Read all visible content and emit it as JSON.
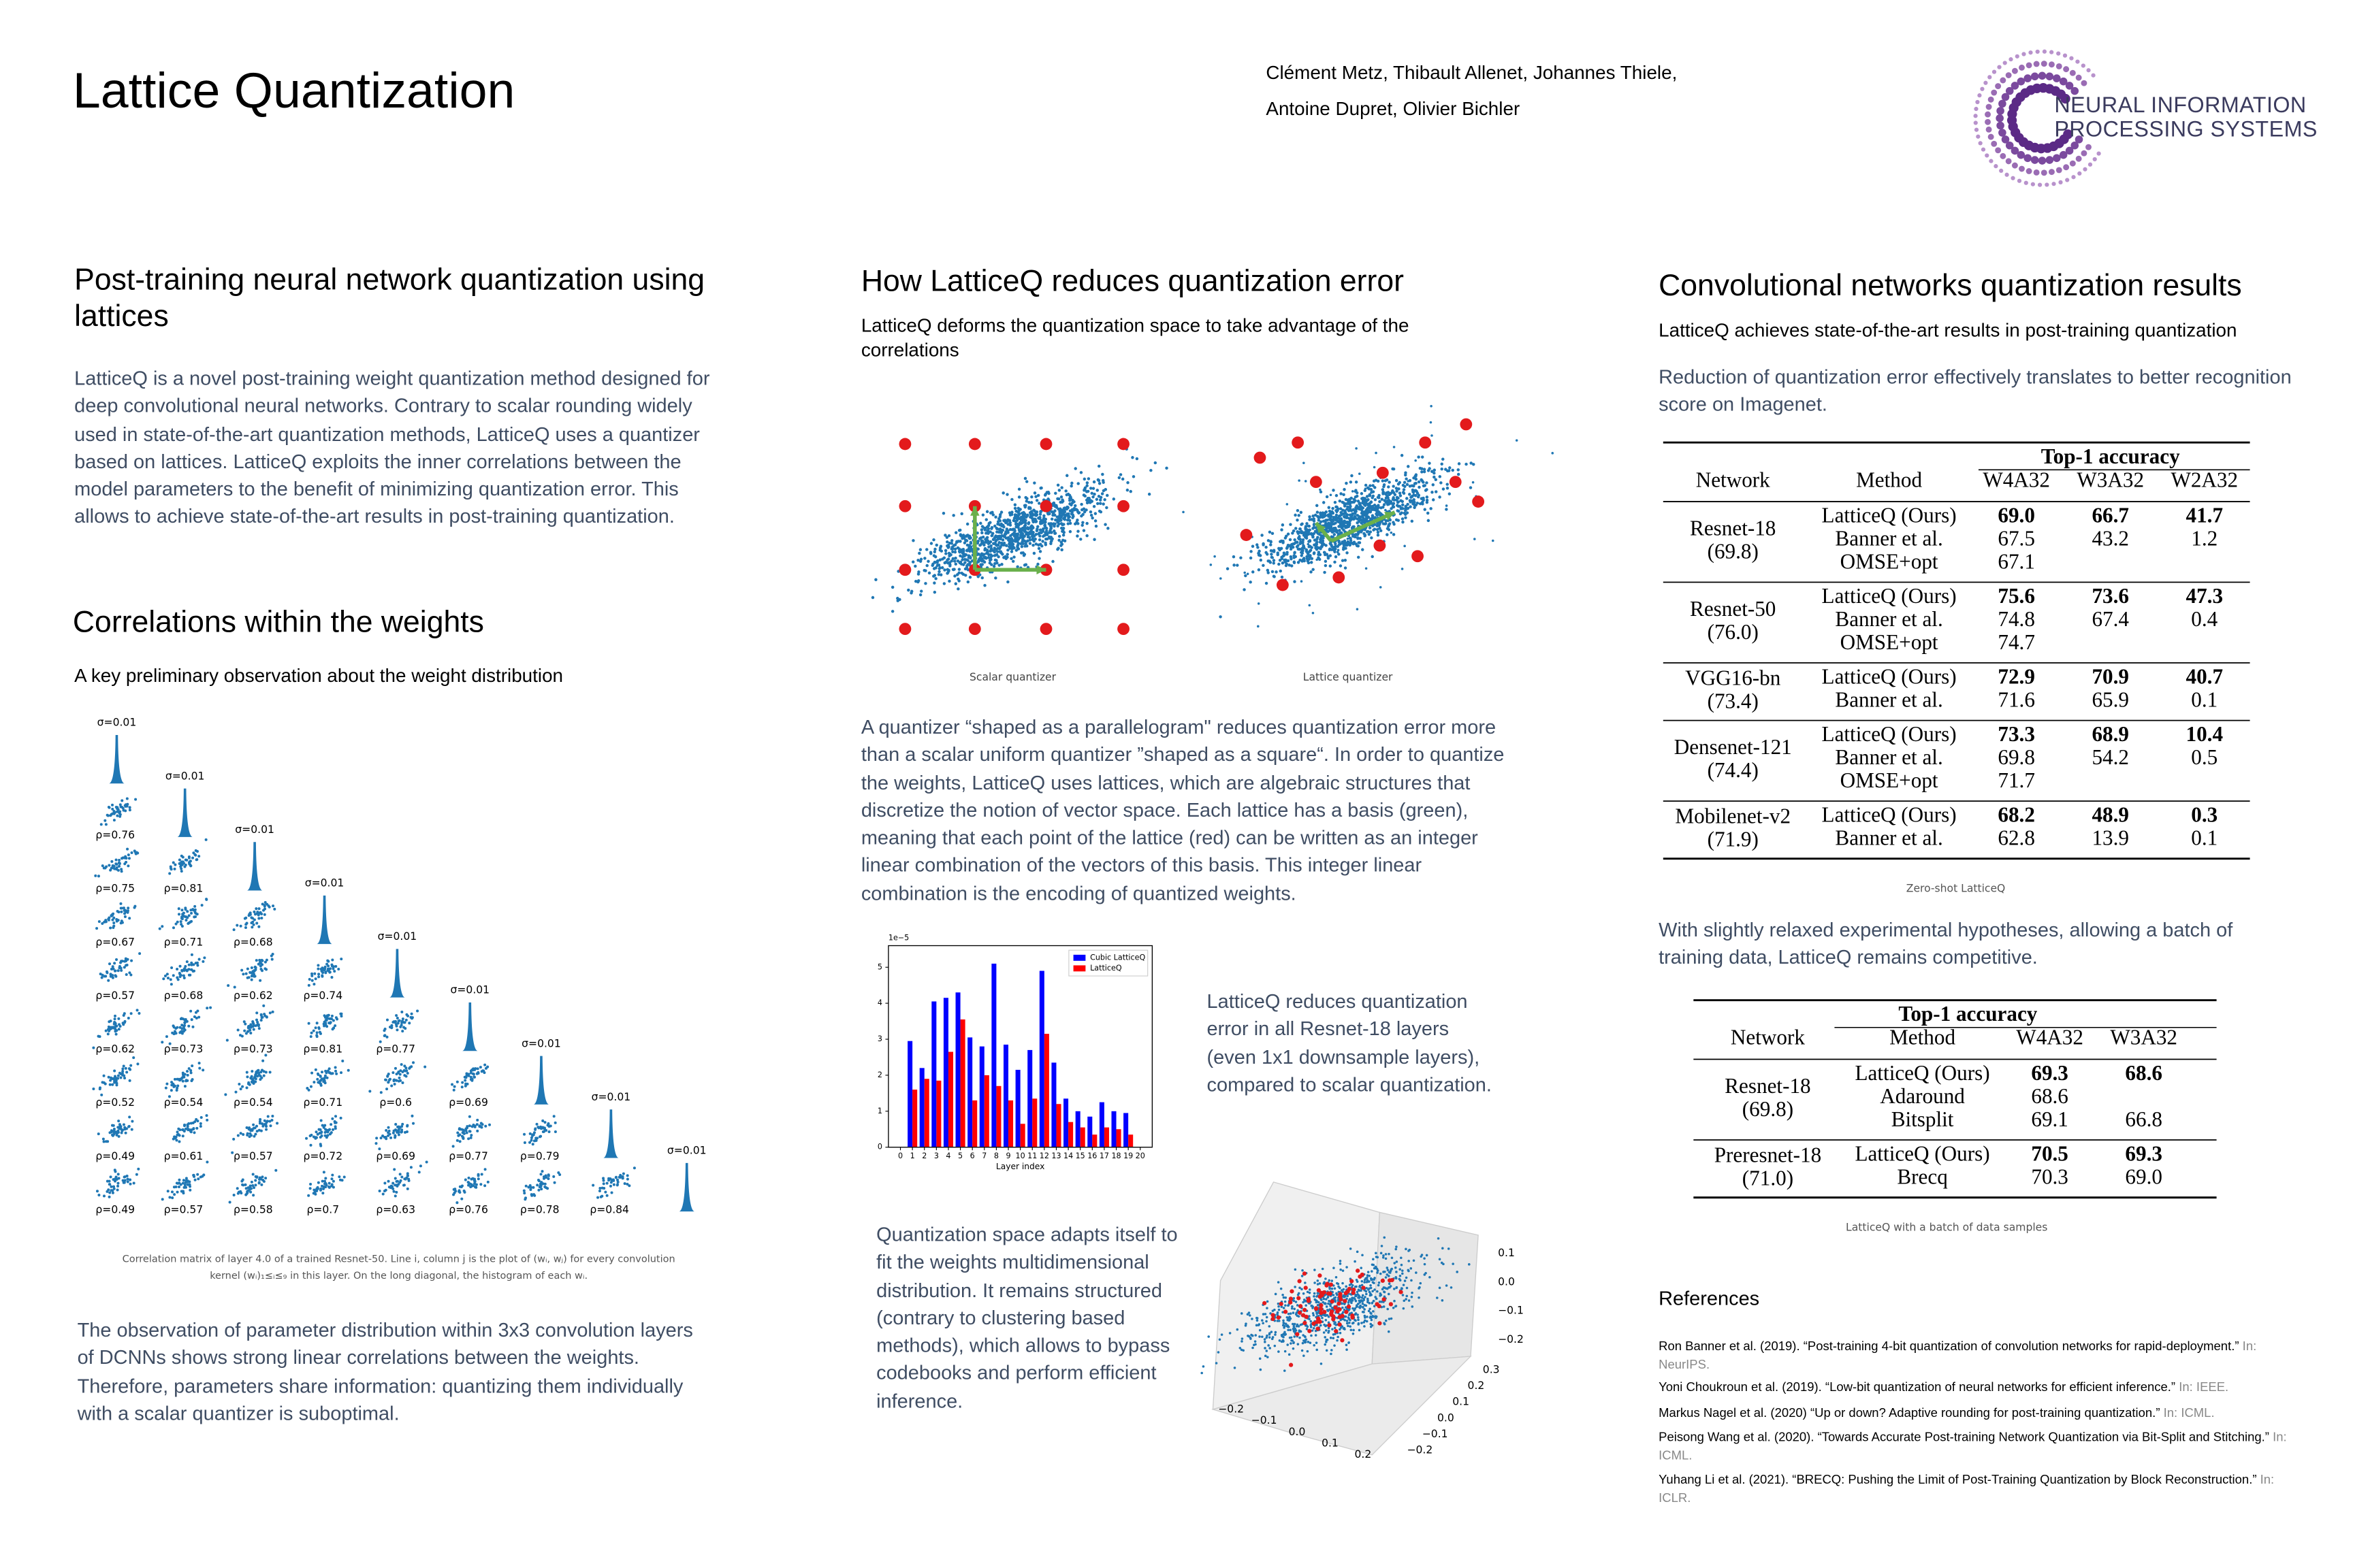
{
  "header": {
    "title": "Lattice Quantization",
    "authors": [
      "Clément Metz, Thibault Allenet, Johannes Thiele,",
      "Antoine Dupret, Olivier Bichler"
    ],
    "logo_text": [
      "NEURAL INFORMATION",
      "PROCESSING SYSTEMS"
    ]
  },
  "intro": {
    "heading": "Post-training neural network quantization using lattices",
    "body": "LatticeQ is a novel post-training weight quantization method designed for deep convolutional neural networks.  Contrary to scalar rounding widely used in state-of-the-art quantization methods, LatticeQ uses a quantizer based on lattices. LatticeQ exploits the inner correlations between the model parameters to the benefit of minimizing quantization error. This allows to achieve state-of-the-art results in post-training quantization."
  },
  "correlations": {
    "heading": "Correlations within the weights",
    "subheading": "A key preliminary observation about the weight distribution",
    "figure": {
      "sigma_labels": [
        "σ=0.01",
        "σ=0.01",
        "σ=0.01",
        "σ=0.01",
        "σ=0.01",
        "σ=0.01",
        "σ=0.01",
        "σ=0.01",
        "σ=0.01"
      ],
      "rho_labels": [
        [
          "ρ=0.76"
        ],
        [
          "ρ=0.75",
          "ρ=0.81"
        ],
        [
          "ρ=0.67",
          "ρ=0.71",
          "ρ=0.68"
        ],
        [
          "ρ=0.57",
          "ρ=0.68",
          "ρ=0.62",
          "ρ=0.74"
        ],
        [
          "ρ=0.62",
          "ρ=0.73",
          "ρ=0.73",
          "ρ=0.81",
          "ρ=0.77"
        ],
        [
          "ρ=0.52",
          "ρ=0.54",
          "ρ=0.54",
          "ρ=0.71",
          "ρ=0.6",
          "ρ=0.69"
        ],
        [
          "ρ=0.49",
          "ρ=0.61",
          "ρ=0.57",
          "ρ=0.72",
          "ρ=0.69",
          "ρ=0.77",
          "ρ=0.79"
        ],
        [
          "ρ=0.49",
          "ρ=0.57",
          "ρ=0.58",
          "ρ=0.7",
          "ρ=0.63",
          "ρ=0.76",
          "ρ=0.78",
          "ρ=0.84"
        ]
      ],
      "caption": [
        "Correlation matrix of layer 4.0 of a trained Resnet-50. Line i, column j is the plot of (wᵢ, wⱼ) for every convolution",
        "kernel (wᵢ)₁≤ᵢ≤₉ in this layer. On the long diagonal, the histogram of each wᵢ."
      ]
    },
    "body": "The observation of parameter distribution within 3x3 convolution layers of DCNNs shows strong linear correlations between the weights. Therefore, parameters share information: quantizing them individually with a scalar quantizer is suboptimal."
  },
  "method": {
    "heading": "How LatticeQ reduces quantization error",
    "subheading": "LatticeQ deforms the quantization space to take advantage of the correlations",
    "scatter_labels": [
      "Scalar quantizer",
      "Lattice quantizer"
    ],
    "body": "A quantizer “shaped as a parallelogram\" reduces quantization error more than a scalar uniform quantizer ”shaped as a square“. In order to quantize the weights, LatticeQ uses lattices, which are algebraic structures that discretize the notion of vector space. Each lattice has a basis (green), meaning that each point of the lattice (red) can be written as an integer linear combination of the vectors of this basis. This integer linear combination is the encoding of quantized weights.",
    "chart_note": "LatticeQ reduces quantization error in all Resnet-18 layers (even 1x1 downsample layers), compared to scalar quantization.",
    "chart_data": {
      "type": "bar",
      "xlabel": "Layer index",
      "offset_label": "1e−5",
      "x": [
        1,
        2,
        3,
        4,
        5,
        6,
        7,
        8,
        9,
        10,
        11,
        12,
        13,
        14,
        15,
        16,
        17,
        18,
        19
      ],
      "series": [
        {
          "name": "Cubic LatticeQ",
          "color": "#0000ff",
          "values": [
            2.95,
            2.2,
            4.05,
            4.15,
            4.3,
            3.05,
            2.8,
            5.1,
            2.85,
            2.15,
            2.7,
            4.9,
            2.35,
            1.35,
            1.0,
            0.85,
            1.25,
            1.0,
            0.95
          ]
        },
        {
          "name": "LatticeQ",
          "color": "#ff0000",
          "values": [
            1.6,
            1.9,
            1.85,
            2.65,
            3.55,
            1.3,
            2.0,
            1.7,
            1.3,
            0.65,
            1.35,
            3.15,
            1.2,
            0.7,
            0.55,
            0.35,
            0.55,
            0.5,
            0.35
          ]
        }
      ],
      "xlim": [
        -1,
        21
      ],
      "xticks": [
        0,
        1,
        2,
        3,
        4,
        5,
        6,
        7,
        8,
        9,
        10,
        11,
        12,
        13,
        14,
        15,
        16,
        17,
        18,
        19,
        20
      ],
      "ylim": [
        0,
        5.6
      ],
      "yticks": [
        0,
        1,
        2,
        3,
        4,
        5
      ],
      "legend": "upper right"
    },
    "space_note": "Quantization space adapts itself to fit the weights multidimensional distribution. It remains structured (contrary to clustering based methods), which allows to bypass codebooks and perform efficient inference.",
    "plot3d": {
      "z_ticks": [
        "0.1",
        "0.0",
        "−0.1",
        "−0.2"
      ],
      "y_ticks": [
        "0.3",
        "0.2",
        "0.1",
        "0.0",
        "−0.1",
        "−0.2"
      ],
      "x_ticks": [
        "−0.2",
        "−0.1",
        "0.0",
        "0.1",
        "0.2"
      ]
    }
  },
  "results": {
    "heading": "Convolutional networks quantization results",
    "subheading": "LatticeQ achieves state-of-the-art results in post-training quantization",
    "body1": "Reduction of quantization error effectively translates to better recognition score on Imagenet.",
    "table1": {
      "spanner": "Top-1 accuracy",
      "columns": [
        "Network",
        "Method",
        "W4A32",
        "W3A32",
        "W2A32"
      ],
      "groups": [
        {
          "network": "Resnet-18",
          "baseline": "(69.8)",
          "rows": [
            [
              "LatticeQ (Ours)",
              "69.0",
              "66.7",
              "41.7"
            ],
            [
              "Banner et al.",
              "67.5",
              "43.2",
              "1.2"
            ],
            [
              "OMSE+opt",
              "67.1"
            ]
          ]
        },
        {
          "network": "Resnet-50",
          "baseline": "(76.0)",
          "rows": [
            [
              "LatticeQ (Ours)",
              "75.6",
              "73.6",
              "47.3"
            ],
            [
              "Banner et al.",
              "74.8",
              "67.4",
              "0.4"
            ],
            [
              "OMSE+opt",
              "74.7"
            ]
          ]
        },
        {
          "network": "VGG16-bn",
          "baseline": "(73.4)",
          "rows": [
            [
              "LatticeQ (Ours)",
              "72.9",
              "70.9",
              "40.7"
            ],
            [
              "Banner et al.",
              "71.6",
              "65.9",
              "0.1"
            ]
          ]
        },
        {
          "network": "Densenet-121",
          "baseline": "(74.4)",
          "rows": [
            [
              "LatticeQ (Ours)",
              "73.3",
              "68.9",
              "10.4"
            ],
            [
              "Banner et al.",
              "69.8",
              "54.2",
              "0.5"
            ],
            [
              "OMSE+opt",
              "71.7"
            ]
          ]
        },
        {
          "network": "Mobilenet-v2",
          "baseline": "(71.9)",
          "rows": [
            [
              "LatticeQ (Ours)",
              "68.2",
              "48.9",
              "0.3"
            ],
            [
              "Banner et al.",
              "62.8",
              "13.9",
              "0.1"
            ]
          ]
        }
      ],
      "caption": "Zero-shot LatticeQ"
    },
    "body2": "With slightly relaxed experimental hypotheses, allowing a batch of training data, LatticeQ remains competitive.",
    "table2": {
      "spanner": "Top-1 accuracy",
      "columns": [
        "Network",
        "Method",
        "W4A32",
        "W3A32"
      ],
      "groups": [
        {
          "network": "Resnet-18",
          "baseline": "(69.8)",
          "rows": [
            [
              "LatticeQ (Ours)",
              "69.3",
              "68.6"
            ],
            [
              "Adaround",
              "68.6"
            ],
            [
              "Bitsplit",
              "69.1",
              "66.8"
            ]
          ]
        },
        {
          "network": "Preresnet-18",
          "baseline": "(71.0)",
          "rows": [
            [
              "LatticeQ (Ours)",
              "70.5",
              "69.3"
            ],
            [
              "Brecq",
              "70.3",
              "69.0"
            ]
          ]
        }
      ],
      "caption": "LatticeQ with a batch of data samples"
    }
  },
  "references": {
    "heading": "References",
    "items": [
      {
        "text": "Ron Banner et al. (2019). “Post-training 4-bit quantization of convolution networks for rapid-deployment.”",
        "venue": "In: NeurIPS."
      },
      {
        "text": "Yoni Choukroun et al. (2019). “Low-bit quantization of neural networks for efficient inference.”",
        "venue": "In: IEEE."
      },
      {
        "text": "Markus Nagel et al. (2020) “Up or down? Adaptive rounding for post-training quantization.”",
        "venue": "In: ICML."
      },
      {
        "text": "Peisong Wang et al. (2020). “Towards Accurate Post-training Network Quantization via Bit-Split and Stitching.”",
        "venue": "In: ICML."
      },
      {
        "text": "Yuhang Li et al. (2021). “BRECQ: Pushing the Limit of Post-Training Quantization by Block Reconstruction.”",
        "venue": "In: ICLR."
      }
    ]
  }
}
